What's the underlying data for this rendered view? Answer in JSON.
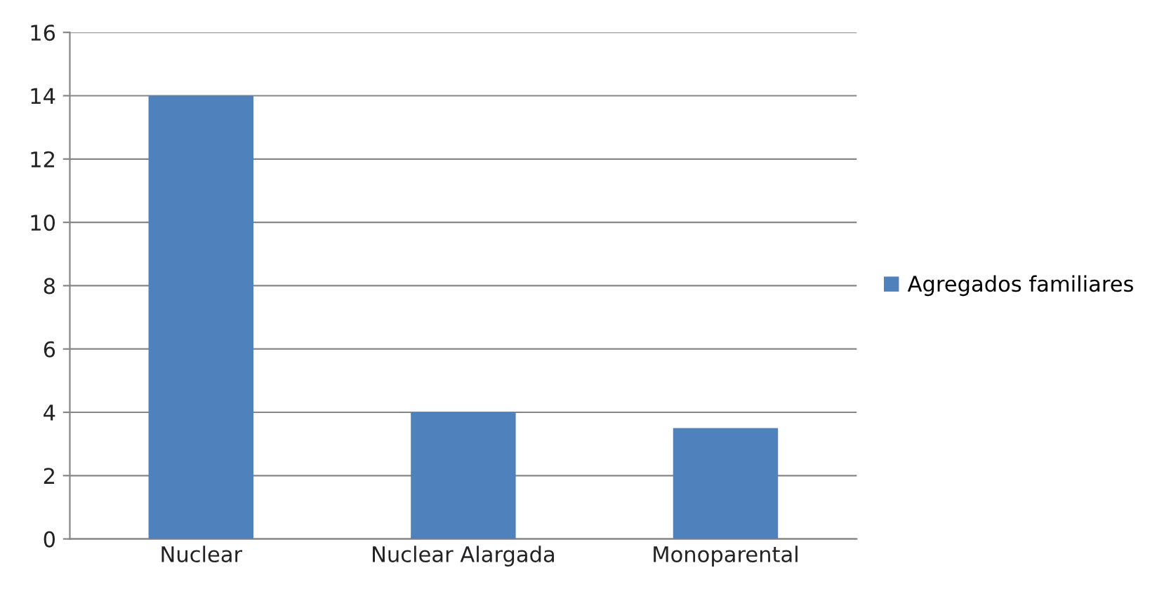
{
  "chart_data": {
    "type": "bar",
    "categories": [
      "Nuclear",
      "Nuclear Alargada",
      "Monoparental"
    ],
    "series": [
      {
        "name": "Agregados familiares",
        "color": "#4f81bd",
        "values": [
          14,
          4,
          3.5
        ]
      }
    ],
    "ylim": [
      0,
      16
    ],
    "yticks": [
      0,
      2,
      4,
      6,
      8,
      10,
      12,
      14,
      16
    ],
    "grid": "y",
    "legend": "right"
  }
}
